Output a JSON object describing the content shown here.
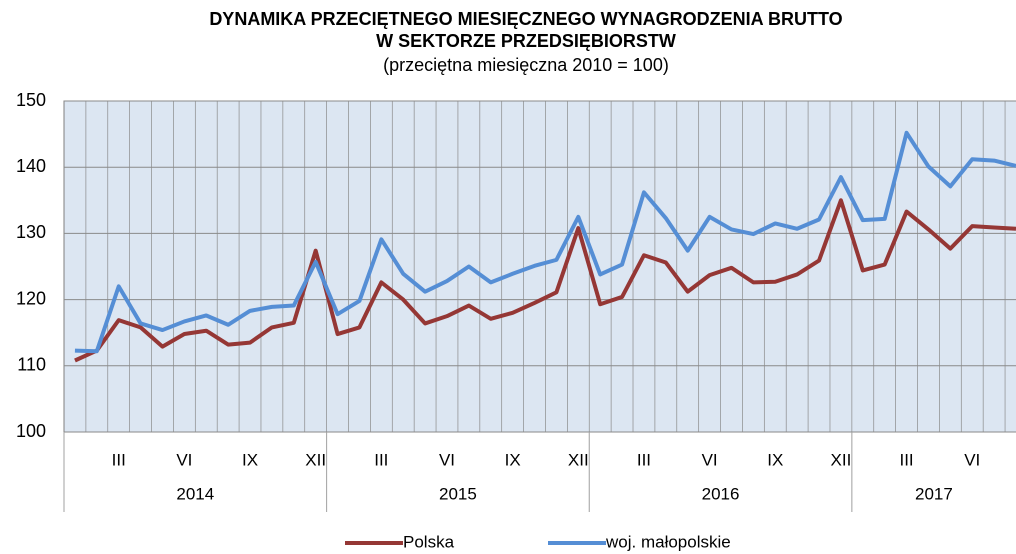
{
  "chart_data": {
    "type": "line",
    "title": "DYNAMIKA  PRZECIĘTNEGO  MIESIĘCZNEGO  WYNAGRODZENIA  BRUTTO",
    "title_line2": "W  SEKTORZE  PRZEDSIĘBIORSTW",
    "subtitle": "(przeciętna miesięczna 2010 = 100)",
    "categories": [
      null,
      null,
      "III",
      null,
      null,
      "VI",
      null,
      null,
      "IX",
      null,
      null,
      "XII",
      null,
      null,
      "III",
      null,
      null,
      "VI",
      null,
      null,
      "IX",
      null,
      null,
      "XII",
      null,
      null,
      "III",
      null,
      null,
      "VI",
      null,
      null,
      "IX",
      null,
      null,
      "XII",
      null,
      null,
      "III",
      null,
      null,
      "VI",
      null,
      null
    ],
    "year_labels": [
      "2014",
      "2015",
      "2016",
      "2017"
    ],
    "series": [
      {
        "name": "Polska",
        "color": "#953735",
        "values": [
          110.8,
          112.3,
          116.9,
          115.8,
          112.9,
          114.8,
          115.3,
          113.2,
          113.5,
          115.8,
          116.5,
          127.4,
          114.8,
          115.8,
          122.6,
          120.0,
          116.4,
          117.5,
          119.1,
          117.1,
          118.0,
          119.5,
          121.1,
          130.8,
          119.3,
          120.4,
          126.7,
          125.6,
          121.2,
          123.7,
          124.8,
          122.6,
          122.7,
          123.8,
          125.9,
          135.0,
          124.4,
          125.3,
          133.3,
          130.6,
          127.7,
          131.1,
          130.9,
          130.7
        ]
      },
      {
        "name": "woj. małopolskie",
        "color": "#558ed5",
        "values": [
          112.3,
          112.2,
          122.0,
          116.4,
          115.4,
          116.7,
          117.6,
          116.2,
          118.3,
          118.9,
          119.1,
          125.7,
          117.8,
          119.8,
          129.1,
          123.9,
          121.2,
          122.8,
          125.0,
          122.6,
          123.9,
          125.1,
          126.0,
          132.5,
          123.8,
          125.3,
          136.2,
          132.3,
          127.4,
          132.5,
          130.6,
          129.9,
          131.5,
          130.7,
          132.1,
          138.5,
          132.0,
          132.2,
          145.2,
          140.1,
          137.1,
          141.2,
          141.0,
          140.2
        ]
      }
    ],
    "ylim": [
      100,
      150
    ],
    "yticks": [
      100,
      110,
      120,
      130,
      140,
      150
    ],
    "grid": true
  }
}
